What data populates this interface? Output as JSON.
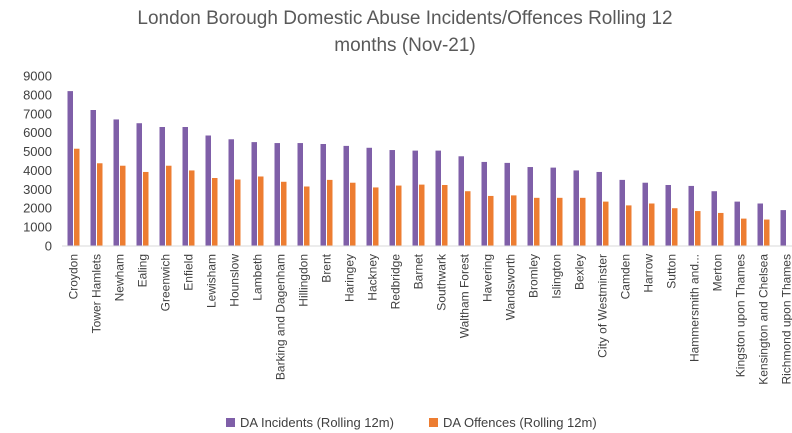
{
  "chart_data": {
    "type": "bar",
    "title_lines": [
      "London Borough Domestic Abuse Incidents/Offences Rolling 12",
      "months (Nov-21)"
    ],
    "categories": [
      "Croydon",
      "Tower Hamlets",
      "Newham",
      "Ealing",
      "Greenwich",
      "Enfield",
      "Lewisham",
      "Hounslow",
      "Lambeth",
      "Barking and Dagenham",
      "Hillingdon",
      "Brent",
      "Haringey",
      "Hackney",
      "Redbridge",
      "Barnet",
      "Southwark",
      "Waltham Forest",
      "Havering",
      "Wandsworth",
      "Bromley",
      "Islington",
      "Bexley",
      "City of Westminster",
      "Camden",
      "Harrow",
      "Sutton",
      "Hammersmith and...",
      "Merton",
      "Kingston upon Thames",
      "Kensington and Chelsea",
      "Richmond upon Thames"
    ],
    "series": [
      {
        "name": "DA Incidents (Rolling 12m)",
        "color": "#7F5FA8",
        "values": [
          8200,
          7200,
          6700,
          6500,
          6300,
          6300,
          5850,
          5650,
          5500,
          5450,
          5450,
          5400,
          5300,
          5200,
          5080,
          5050,
          5050,
          4750,
          4450,
          4400,
          4180,
          4150,
          4000,
          3920,
          3500,
          3350,
          3230,
          3180,
          2900,
          2350,
          2250,
          1900
        ]
      },
      {
        "name": "DA Offences (Rolling 12m)",
        "color": "#ED7D31",
        "values": [
          5150,
          4380,
          4250,
          3920,
          4250,
          4000,
          3600,
          3520,
          3680,
          3400,
          3150,
          3500,
          3350,
          3100,
          3200,
          3250,
          3230,
          2900,
          2650,
          2680,
          2550,
          2550,
          2550,
          2350,
          2150,
          2250,
          2000,
          1850,
          1750,
          1450,
          1400,
          0
        ]
      }
    ],
    "yticks": [
      0,
      1000,
      2000,
      3000,
      4000,
      5000,
      6000,
      7000,
      8000,
      9000
    ],
    "ylim": [
      0,
      9000
    ],
    "legend_position": "bottom",
    "grid": false
  }
}
